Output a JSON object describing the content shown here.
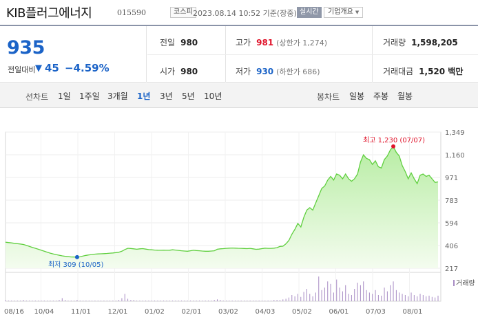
{
  "header": {
    "stock_name": "KIB플러그에너지",
    "stock_code": "015590",
    "market_badge": "코스피",
    "datetime": "2023.08.14 10:52  기준(장중)",
    "realtime_label": "실시간",
    "company_info_label": "기업개요"
  },
  "summary": {
    "current_price": "935",
    "change_label": "전일대비",
    "change_arrow": "▼",
    "change_amount": "45",
    "change_percent": "−4.59%",
    "prev_close_label": "전일",
    "prev_close": "980",
    "open_label": "시가",
    "open": "980",
    "high_label": "고가",
    "high": "981",
    "upper_limit": "(상한가 1,274)",
    "low_label": "저가",
    "low": "930",
    "lower_limit": "(하한가 686)",
    "volume_label": "거래량",
    "volume": "1,598,205",
    "trade_value_label": "거래대금",
    "trade_value": "1,520 백만"
  },
  "period_bar": {
    "line_chart_label": "선차트",
    "periods": [
      "1일",
      "1주일",
      "3개월",
      "1년",
      "3년",
      "5년",
      "10년"
    ],
    "active_period": "1년",
    "candle_chart_label": "봉차트",
    "candle_periods": [
      "일봉",
      "주봉",
      "월봉"
    ]
  },
  "chart_data": {
    "type": "area",
    "title": "",
    "y_ticks": [
      1349,
      1160,
      971,
      783,
      594,
      406,
      217
    ],
    "y_tick_labels": [
      "1,349",
      "1,160",
      "971",
      "783",
      "594",
      "406",
      "217"
    ],
    "ylim": [
      217,
      1349
    ],
    "x_tick_labels": [
      "08/16",
      "10/04",
      "11/01",
      "12/01",
      "01/02",
      "02/01",
      "03/02",
      "04/03",
      "05/02",
      "06/01",
      "07/03",
      "08/01"
    ],
    "high_annotation": "최고 1,230 (07/07)",
    "low_annotation": "최저 309 (10/05)",
    "price_series": [
      433,
      430,
      428,
      424,
      421,
      418,
      414,
      407,
      398,
      390,
      383,
      375,
      366,
      358,
      350,
      342,
      336,
      330,
      325,
      320,
      316,
      313,
      311,
      310,
      309,
      312,
      318,
      324,
      328,
      331,
      334,
      336,
      337,
      338,
      340,
      342,
      344,
      347,
      350,
      358,
      372,
      383,
      381,
      378,
      375,
      378,
      380,
      376,
      372,
      370,
      368,
      367,
      366,
      367,
      366,
      367,
      370,
      368,
      365,
      362,
      360,
      358,
      362,
      366,
      364,
      362,
      360,
      358,
      358,
      360,
      362,
      375,
      378,
      380,
      382,
      384,
      385,
      384,
      383,
      382,
      381,
      380,
      382,
      378,
      374,
      376,
      380,
      384,
      382,
      382,
      384,
      388,
      398,
      400,
      420,
      448,
      500,
      540,
      590,
      560,
      640,
      700,
      720,
      700,
      760,
      820,
      880,
      900,
      950,
      980,
      950,
      1000,
      990,
      960,
      1000,
      960,
      940,
      960,
      1000,
      1100,
      1160,
      1130,
      1120,
      1080,
      1110,
      1060,
      1050,
      1120,
      1150,
      1200,
      1230,
      1180,
      1150,
      1070,
      1020,
      960,
      1010,
      960,
      920,
      990,
      1000,
      980,
      990,
      960,
      930,
      935
    ],
    "volume_label": "거래량",
    "volume_series": [
      2,
      1,
      1,
      1,
      1,
      1,
      2,
      1,
      1,
      1,
      1,
      1,
      1,
      1,
      1,
      1,
      1,
      1,
      2,
      5,
      2,
      1,
      1,
      1,
      2,
      1,
      1,
      1,
      1,
      1,
      1,
      1,
      1,
      1,
      1,
      1,
      1,
      1,
      2,
      5,
      12,
      4,
      2,
      2,
      1,
      1,
      1,
      1,
      1,
      1,
      1,
      1,
      1,
      1,
      1,
      1,
      1,
      1,
      1,
      1,
      1,
      1,
      1,
      1,
      1,
      1,
      1,
      1,
      1,
      1,
      2,
      3,
      2,
      1,
      1,
      1,
      1,
      1,
      1,
      1,
      1,
      1,
      1,
      1,
      1,
      1,
      1,
      1,
      1,
      1,
      2,
      2,
      2,
      3,
      4,
      6,
      10,
      8,
      12,
      7,
      15,
      20,
      12,
      8,
      14,
      40,
      18,
      22,
      32,
      28,
      14,
      35,
      22,
      16,
      26,
      12,
      10,
      20,
      30,
      26,
      32,
      18,
      14,
      12,
      18,
      10,
      9,
      22,
      16,
      26,
      32,
      18,
      14,
      12,
      10,
      8,
      14,
      10,
      8,
      12,
      10,
      8,
      9,
      7,
      6,
      9
    ],
    "colors": {
      "line": "#5fcf3e",
      "fill_top": "#b8eda4",
      "fill_bottom": "#f4fcef",
      "high": "#e0142b",
      "low": "#1b63c7",
      "volume": "#a78bc4"
    }
  }
}
